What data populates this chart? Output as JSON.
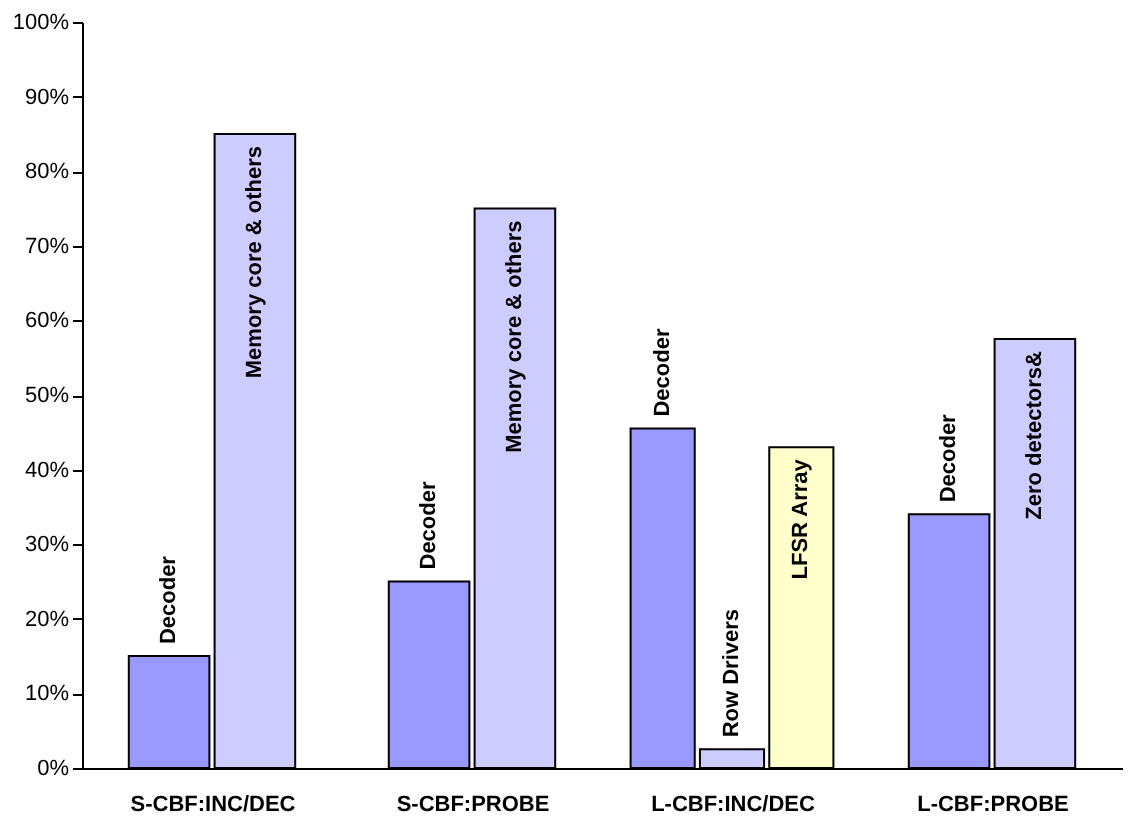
{
  "chart_data": {
    "type": "bar",
    "categories": [
      "S-CBF:INC/DEC",
      "S-CBF:PROBE",
      "L-CBF:INC/DEC",
      "L-CBF:PROBE"
    ],
    "series": [
      {
        "color": "#9999ff",
        "values": [
          15,
          25,
          45.5,
          34
        ],
        "value_labels": [
          "Decoder",
          "Decoder",
          "Decoder",
          "Decoder"
        ]
      },
      {
        "color": "#ccccff",
        "values": [
          85,
          75,
          2.5,
          57.5
        ],
        "value_labels": [
          "Memory core & others",
          "Memory core & others",
          "Row Drivers",
          "Zero detectors&"
        ]
      },
      {
        "color": "#ffffcc",
        "values": [
          null,
          null,
          43,
          null
        ],
        "value_labels": [
          null,
          null,
          "LFSR Array",
          null
        ]
      }
    ],
    "ylim": [
      0,
      100
    ],
    "yticks": [
      {
        "value": 0,
        "label": "0%"
      },
      {
        "value": 10,
        "label": "10%"
      },
      {
        "value": 20,
        "label": "20%"
      },
      {
        "value": 30,
        "label": "30%"
      },
      {
        "value": 40,
        "label": "40%"
      },
      {
        "value": 50,
        "label": "50%"
      },
      {
        "value": 60,
        "label": "60%"
      },
      {
        "value": 70,
        "label": "70%"
      },
      {
        "value": 80,
        "label": "80%"
      },
      {
        "value": 90,
        "label": "90%"
      },
      {
        "value": 100,
        "label": "100%"
      }
    ],
    "grid": false,
    "legend": false
  }
}
